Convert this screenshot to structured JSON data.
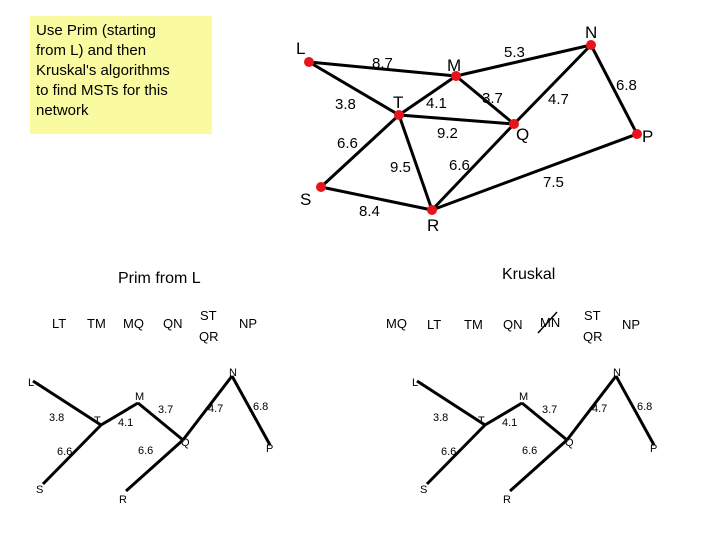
{
  "instruction": {
    "lines": [
      "Use Prim (starting",
      "from L) and then",
      "Kruskal's algorithms",
      "to find MSTs for this",
      "network"
    ]
  },
  "network": {
    "nodes": [
      "L",
      "M",
      "N",
      "T",
      "Q",
      "P",
      "S",
      "R"
    ],
    "edges": [
      {
        "from": "L",
        "to": "M",
        "weight": "8.7"
      },
      {
        "from": "M",
        "to": "N",
        "weight": "5.3"
      },
      {
        "from": "L",
        "to": "T",
        "weight": "3.8"
      },
      {
        "from": "T",
        "to": "M",
        "weight": "4.1"
      },
      {
        "from": "M",
        "to": "Q",
        "weight": "3.7"
      },
      {
        "from": "N",
        "to": "Q",
        "weight": "4.7"
      },
      {
        "from": "N",
        "to": "P",
        "weight": "6.8"
      },
      {
        "from": "T",
        "to": "Q",
        "weight": "9.2"
      },
      {
        "from": "T",
        "to": "S",
        "weight": "6.6"
      },
      {
        "from": "T",
        "to": "R",
        "weight": "9.5"
      },
      {
        "from": "Q",
        "to": "R",
        "weight": "6.6"
      },
      {
        "from": "P",
        "to": "R",
        "weight": "7.5"
      },
      {
        "from": "S",
        "to": "R",
        "weight": "8.4"
      }
    ]
  },
  "prim": {
    "title": "Prim from L",
    "order": [
      "LT",
      "TM",
      "MQ",
      "QN",
      "ST",
      "QR",
      "NP"
    ]
  },
  "kruskal": {
    "title": "Kruskal",
    "order": [
      "MQ",
      "LT",
      "TM",
      "QN",
      "MN",
      "ST",
      "QR",
      "NP"
    ],
    "rejected": "MN"
  },
  "mst": {
    "nodes": [
      "L",
      "T",
      "M",
      "Q",
      "N",
      "P",
      "S",
      "R"
    ],
    "edges": [
      {
        "from": "L",
        "to": "T",
        "weight": "3.8"
      },
      {
        "from": "T",
        "to": "M",
        "weight": "4.1"
      },
      {
        "from": "M",
        "to": "Q",
        "weight": "3.7"
      },
      {
        "from": "Q",
        "to": "N",
        "weight": "4.7"
      },
      {
        "from": "N",
        "to": "P",
        "weight": "6.8"
      },
      {
        "from": "T",
        "to": "S",
        "weight": "6.6"
      },
      {
        "from": "Q",
        "to": "R",
        "weight": "6.6"
      }
    ]
  },
  "colors": {
    "node": "#e8141b",
    "note_bg": "#fafaa0",
    "line": "#000000"
  }
}
